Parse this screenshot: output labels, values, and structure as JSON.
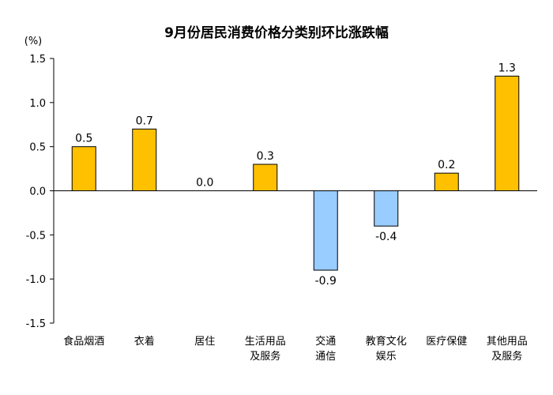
{
  "chart_data": {
    "type": "bar",
    "title": "9月份居民消费价格分类别环比涨跌幅",
    "ylabel": "(%)",
    "xlabel": "",
    "ylim": [
      -1.5,
      1.5
    ],
    "yticks": [
      "1.5",
      "1.0",
      "0.5",
      "0.0",
      "-0.5",
      "-1.0",
      "-1.5"
    ],
    "categories": [
      [
        "食品烟酒"
      ],
      [
        "衣着"
      ],
      [
        "居住"
      ],
      [
        "生活用品",
        "及服务"
      ],
      [
        "交通",
        "通信"
      ],
      [
        "教育文化",
        "娱乐"
      ],
      [
        "医疗保健"
      ],
      [
        "其他用品",
        "及服务"
      ]
    ],
    "values": [
      0.5,
      0.7,
      0.0,
      0.3,
      -0.9,
      -0.4,
      0.2,
      1.3
    ],
    "value_labels": [
      "0.5",
      "0.7",
      "0.0",
      "0.3",
      "-0.9",
      "-0.4",
      "0.2",
      "1.3"
    ],
    "colors": {
      "positive": "#FFC000",
      "negative": "#99CCFF",
      "stroke": "#000000",
      "axis": "#000000"
    }
  }
}
